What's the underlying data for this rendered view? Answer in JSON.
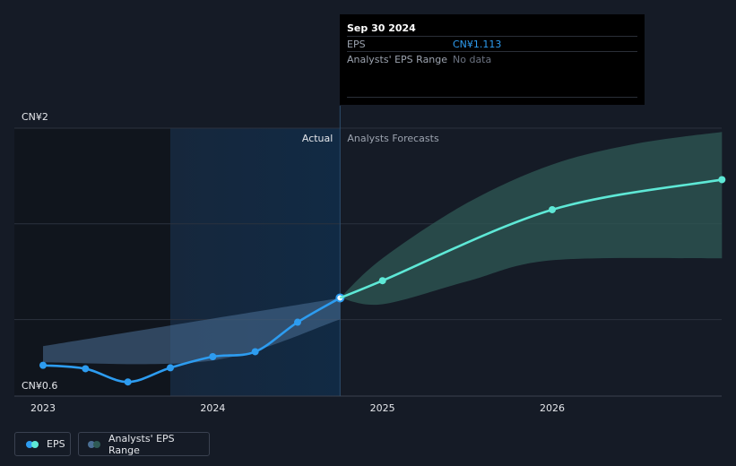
{
  "chart_data": {
    "type": "line",
    "y_axis": {
      "ticks": [
        "CN¥2",
        "CN¥0.6"
      ],
      "range": [
        0.6,
        2.0
      ]
    },
    "x_axis": {
      "ticks": [
        "2023",
        "2024",
        "2025",
        "2026"
      ]
    },
    "region_labels": {
      "actual": "Actual",
      "forecast": "Analysts Forecasts"
    },
    "series": [
      {
        "name": "EPS",
        "kind": "actual",
        "color": "#2d9cf0",
        "points": [
          {
            "x": 2023.0,
            "y": 0.761
          },
          {
            "x": 2023.25,
            "y": 0.743
          },
          {
            "x": 2023.5,
            "y": 0.674
          },
          {
            "x": 2023.75,
            "y": 0.748
          },
          {
            "x": 2024.0,
            "y": 0.806
          },
          {
            "x": 2024.25,
            "y": 0.832
          },
          {
            "x": 2024.5,
            "y": 0.986
          },
          {
            "x": 2024.75,
            "y": 1.113
          }
        ]
      },
      {
        "name": "EPS",
        "kind": "forecast",
        "color": "#5ee8d6",
        "points": [
          {
            "x": 2024.75,
            "y": 1.113
          },
          {
            "x": 2025.0,
            "y": 1.203
          },
          {
            "x": 2026.0,
            "y": 1.574
          },
          {
            "x": 2027.0,
            "y": 1.731
          }
        ]
      }
    ],
    "ranges": [
      {
        "name": "Analysts' EPS Range",
        "kind": "actual",
        "color": "#4a6f95",
        "upper": [
          {
            "x": 2023.0,
            "y": 0.861
          },
          {
            "x": 2024.75,
            "y": 1.113
          }
        ],
        "lower": [
          {
            "x": 2023.0,
            "y": 0.776
          },
          {
            "x": 2024.0,
            "y": 0.786
          },
          {
            "x": 2024.75,
            "y": 1.001
          }
        ]
      },
      {
        "name": "Analysts' EPS Range",
        "kind": "forecast",
        "color": "#2f5a55",
        "upper": [
          {
            "x": 2024.75,
            "y": 1.113
          },
          {
            "x": 2025.0,
            "y": 1.32
          },
          {
            "x": 2025.5,
            "y": 1.61
          },
          {
            "x": 2026.0,
            "y": 1.81
          },
          {
            "x": 2026.5,
            "y": 1.92
          },
          {
            "x": 2027.0,
            "y": 1.98
          }
        ],
        "lower": [
          {
            "x": 2024.75,
            "y": 1.113
          },
          {
            "x": 2025.0,
            "y": 1.08
          },
          {
            "x": 2025.5,
            "y": 1.2
          },
          {
            "x": 2026.0,
            "y": 1.31
          },
          {
            "x": 2027.0,
            "y": 1.32
          }
        ]
      }
    ],
    "highlight": {
      "date": "Sep 30 2024",
      "x": 2024.75
    },
    "past_shading_from": 2023.75,
    "grid": true,
    "legend_position": "bottom-left"
  },
  "tooltip": {
    "date": "Sep 30 2024",
    "rows": [
      {
        "label": "EPS",
        "value": "CN¥1.113",
        "value_color": "#2d9cf0"
      },
      {
        "label": "Analysts' EPS Range",
        "value": "No data",
        "value_color": "#6b7280"
      }
    ]
  },
  "legend": [
    {
      "label": "EPS",
      "colors": [
        "#2d9cf0",
        "#5ee8d6"
      ]
    },
    {
      "label": "Analysts' EPS Range",
      "colors": [
        "#4a6f95",
        "#2f5a55"
      ]
    }
  ]
}
